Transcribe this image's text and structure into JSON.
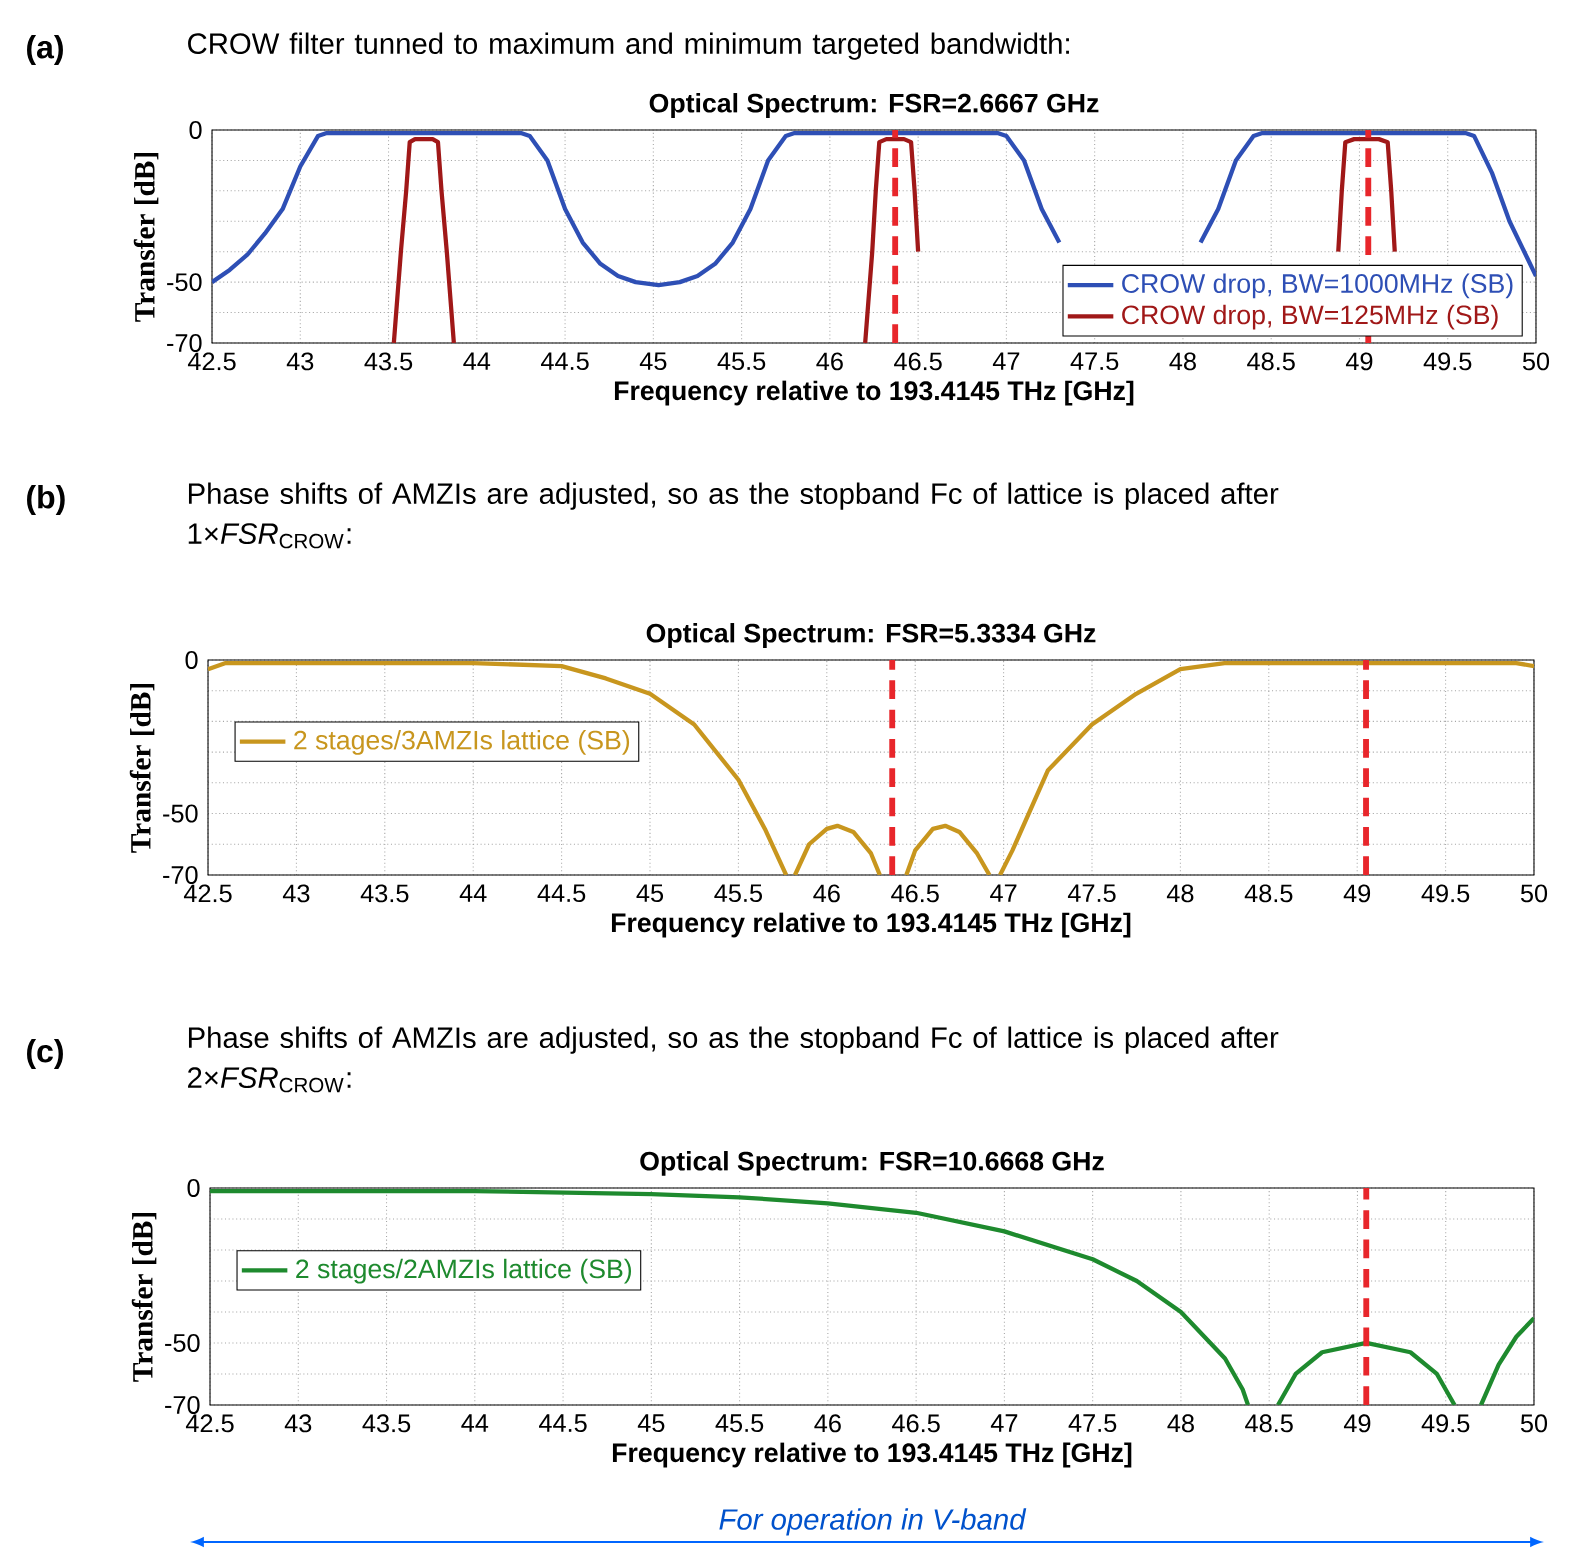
{
  "chart_data": [
    {
      "type": "line",
      "title": "Optical Spectrum: FSR=2.6667 GHz",
      "subtitle": "CROW filter tunned to maximum and minimum targeted bandwidth:",
      "annotations": [
        "(a)"
      ],
      "xlabel": "Frequency relative to 193.4145 THz [GHz]",
      "ylabel": "Transfer [dB]",
      "series": [
        {
          "name": "CROW drop, BW=1000MHz (SB)",
          "color": "#2e4fb5",
          "x": [
            42.5,
            42.6,
            42.7,
            42.8,
            42.9,
            43.0,
            43.1,
            43.15,
            44.25,
            44.3,
            44.4,
            44.5,
            44.6,
            44.7,
            44.8,
            44.9,
            45.03,
            45.15,
            45.25,
            45.35,
            45.45,
            45.55,
            45.65,
            45.75,
            45.8,
            46.95,
            47.0,
            47.1,
            47.2,
            47.3,
            47.4,
            47.5,
            47.6,
            47.7,
            47.8,
            47.9,
            48.0,
            48.1,
            48.2,
            48.3,
            48.4,
            48.45,
            49.6,
            49.65,
            49.75,
            49.85,
            49.95,
            50.0
          ],
          "values": [
            -50,
            -46,
            -41,
            -34,
            -26,
            -12,
            -2,
            -1,
            -1,
            -2,
            -10,
            -26,
            -37,
            -44,
            -48,
            -50,
            -51,
            -50,
            -48,
            -44,
            -37,
            -26,
            -10,
            -2,
            -1,
            -1,
            -2,
            -10,
            -26,
            -37,
            null,
            null,
            null,
            null,
            null,
            null,
            null,
            -37,
            -26,
            -10,
            -2,
            -1,
            -1,
            -2,
            -14,
            -30,
            -42,
            -48
          ]
        },
        {
          "name": "CROW drop, BW=125MHz (SB)",
          "color": "#a01818",
          "x": [
            43.53,
            43.55,
            43.57,
            43.6,
            43.62,
            43.65,
            43.7,
            43.75,
            43.78,
            43.8,
            43.83,
            43.85,
            43.87,
            45.0,
            46.2,
            46.22,
            46.24,
            46.26,
            46.28,
            46.32,
            46.37,
            46.42,
            46.46,
            46.48,
            46.5,
            46.52,
            48.86,
            48.88,
            48.9,
            48.92,
            48.97,
            49.04,
            49.11,
            49.16,
            49.18,
            49.2
          ],
          "values": [
            -70,
            -55,
            -40,
            -20,
            -4,
            -3,
            -3,
            -3,
            -4,
            -20,
            -40,
            -55,
            -70,
            null,
            -70,
            -55,
            -40,
            -20,
            -4,
            -3,
            -3,
            -3,
            -4,
            -20,
            -40,
            null,
            null,
            -40,
            -20,
            -4,
            -3,
            -3,
            -3,
            -4,
            -20,
            -40
          ]
        }
      ],
      "xlim": [
        42.5,
        50
      ],
      "xticks": [
        42.5,
        43,
        43.5,
        44,
        44.5,
        45,
        45.5,
        46,
        46.5,
        47,
        47.5,
        48,
        48.5,
        49,
        49.5,
        50
      ],
      "ylim": [
        -70,
        0
      ],
      "yticks": [
        0,
        {
          "value": -10,
          "label": null
        },
        {
          "value": -20,
          "label": null
        },
        {
          "value": -30,
          "label": null
        },
        {
          "value": -40,
          "label": null
        },
        -50,
        {
          "value": -60,
          "label": null
        },
        -70
      ],
      "grid": true,
      "legend": "bottom right",
      "ref_lines": [
        {
          "axis": "x",
          "value": 46.37,
          "color": "#e8262b",
          "line_style": "dashed"
        },
        {
          "axis": "x",
          "value": 49.05,
          "color": "#e8262b",
          "line_style": "dashed"
        }
      ]
    },
    {
      "type": "line",
      "title": "Optical Spectrum: FSR=5.3334 GHz",
      "subtitle": "Phase shifts of AMZIs are adjusted, so as the stopband Fc of lattice is placed after 1×*FSR*$_{CROW}$:",
      "annotations": [
        "(b)"
      ],
      "xlabel": "Frequency relative to 193.4145 THz [GHz]",
      "ylabel": "Transfer [dB]",
      "series": [
        {
          "name": "2 stages/3AMZIs lattice (SB)",
          "color": "#c8961e",
          "x": [
            42.5,
            42.6,
            43.0,
            44.0,
            44.5,
            44.75,
            45.0,
            45.25,
            45.5,
            45.65,
            45.77,
            45.8,
            45.82,
            45.9,
            46.0,
            46.06,
            46.15,
            46.25,
            46.3,
            46.35,
            46.45,
            46.5,
            46.6,
            46.67,
            46.75,
            46.85,
            46.92,
            46.96,
            46.98,
            47.05,
            47.25,
            47.5,
            47.75,
            48.0,
            48.25,
            49.9,
            50.0
          ],
          "values": [
            -3,
            -1,
            -1,
            -1,
            -2,
            -6,
            -11,
            -21,
            -39,
            -55,
            -70,
            null,
            -70,
            -60,
            -55,
            -54,
            -56,
            -63,
            -70,
            null,
            -70,
            -62,
            -55,
            -54,
            -56,
            -63,
            -70,
            null,
            -70,
            -62,
            -36,
            -21,
            -11,
            -3,
            -1,
            -1,
            -2
          ]
        }
      ],
      "xlim": [
        42.5,
        50
      ],
      "xticks": [
        42.5,
        43,
        43.5,
        44,
        44.5,
        45,
        45.5,
        46,
        46.5,
        47,
        47.5,
        48,
        48.5,
        49,
        49.5,
        50
      ],
      "ylim": [
        -70,
        0
      ],
      "yticks": [
        0,
        {
          "value": -10,
          "label": null
        },
        {
          "value": -20,
          "label": null
        },
        {
          "value": -30,
          "label": null
        },
        {
          "value": -40,
          "label": null
        },
        -50,
        {
          "value": -60,
          "label": null
        },
        -70
      ],
      "grid": true,
      "legend": "left",
      "ref_lines": [
        {
          "axis": "x",
          "value": 46.37,
          "color": "#e8262b",
          "line_style": "dashed"
        },
        {
          "axis": "x",
          "value": 49.05,
          "color": "#e8262b",
          "line_style": "dashed"
        }
      ]
    },
    {
      "type": "line",
      "title": "Optical Spectrum: FSR=10.6668 GHz",
      "subtitle": "Phase shifts of AMZIs are adjusted, so as the stopband Fc of lattice is placed after 2×*FSR*$_{CROW}$:",
      "annotations": [
        "(c)",
        "For operation in  V-band"
      ],
      "xlabel": "Frequency relative to 193.4145 THz [GHz]",
      "ylabel": "Transfer [dB]",
      "series": [
        {
          "name": "2 stages/2AMZIs lattice (SB)",
          "color": "#1e8a2e",
          "x": [
            42.5,
            44.0,
            45.0,
            45.5,
            46.0,
            46.5,
            47.0,
            47.5,
            47.75,
            48.0,
            48.25,
            48.35,
            48.38,
            48.45,
            48.55,
            48.65,
            48.8,
            49.05,
            49.3,
            49.45,
            49.55,
            49.62,
            49.7,
            49.8,
            49.9,
            50.0
          ],
          "values": [
            -1,
            -1,
            -2,
            -3,
            -5,
            -8,
            -14,
            -23,
            -30,
            -40,
            -55,
            -65,
            -70,
            null,
            -70,
            -60,
            -53,
            -50,
            -53,
            -60,
            -70,
            null,
            -70,
            -57,
            -48,
            -42
          ]
        }
      ],
      "xlim": [
        42.5,
        50
      ],
      "xticks": [
        42.5,
        43,
        43.5,
        44,
        44.5,
        45,
        45.5,
        46,
        46.5,
        47,
        47.5,
        48,
        48.5,
        49,
        49.5,
        50
      ],
      "ylim": [
        -70,
        0
      ],
      "yticks": [
        0,
        {
          "value": -10,
          "label": null
        },
        {
          "value": -20,
          "label": null
        },
        {
          "value": -30,
          "label": null
        },
        {
          "value": -40,
          "label": null
        },
        -50,
        {
          "value": -60,
          "label": null
        },
        -70
      ],
      "grid": true,
      "legend": "left",
      "ref_lines": [
        {
          "axis": "x",
          "value": 49.05,
          "color": "#e8262b",
          "line_style": "dashed"
        }
      ]
    }
  ]
}
